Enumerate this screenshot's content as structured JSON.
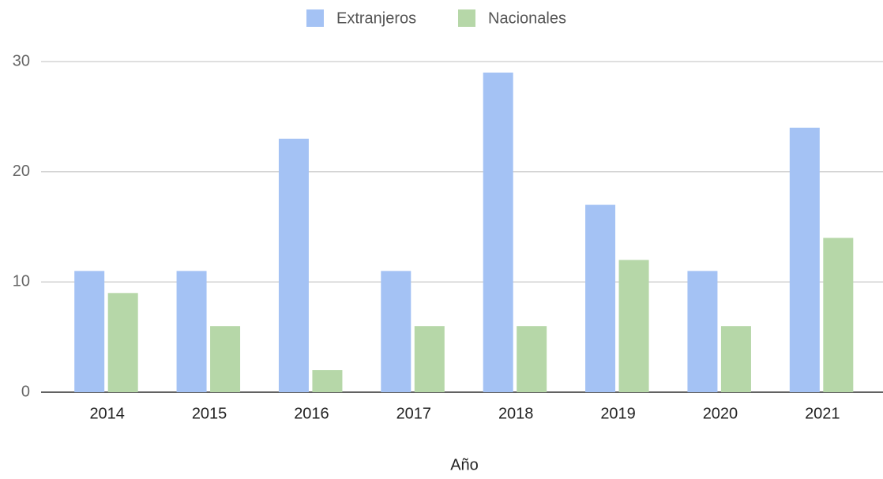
{
  "chart_data": {
    "type": "bar",
    "categories": [
      "2014",
      "2015",
      "2016",
      "2017",
      "2018",
      "2019",
      "2020",
      "2021"
    ],
    "series": [
      {
        "name": "Extranjeros",
        "color": "#a4c2f4",
        "values": [
          11,
          11,
          23,
          11,
          29,
          17,
          11,
          24
        ]
      },
      {
        "name": "Nacionales",
        "color": "#b6d7a8",
        "values": [
          9,
          6,
          2,
          6,
          6,
          12,
          6,
          14
        ]
      }
    ],
    "x_label": "Año",
    "ylim": [
      0,
      30
    ],
    "yticks": [
      0,
      10,
      20,
      30
    ],
    "grid": true,
    "legend": "top"
  }
}
